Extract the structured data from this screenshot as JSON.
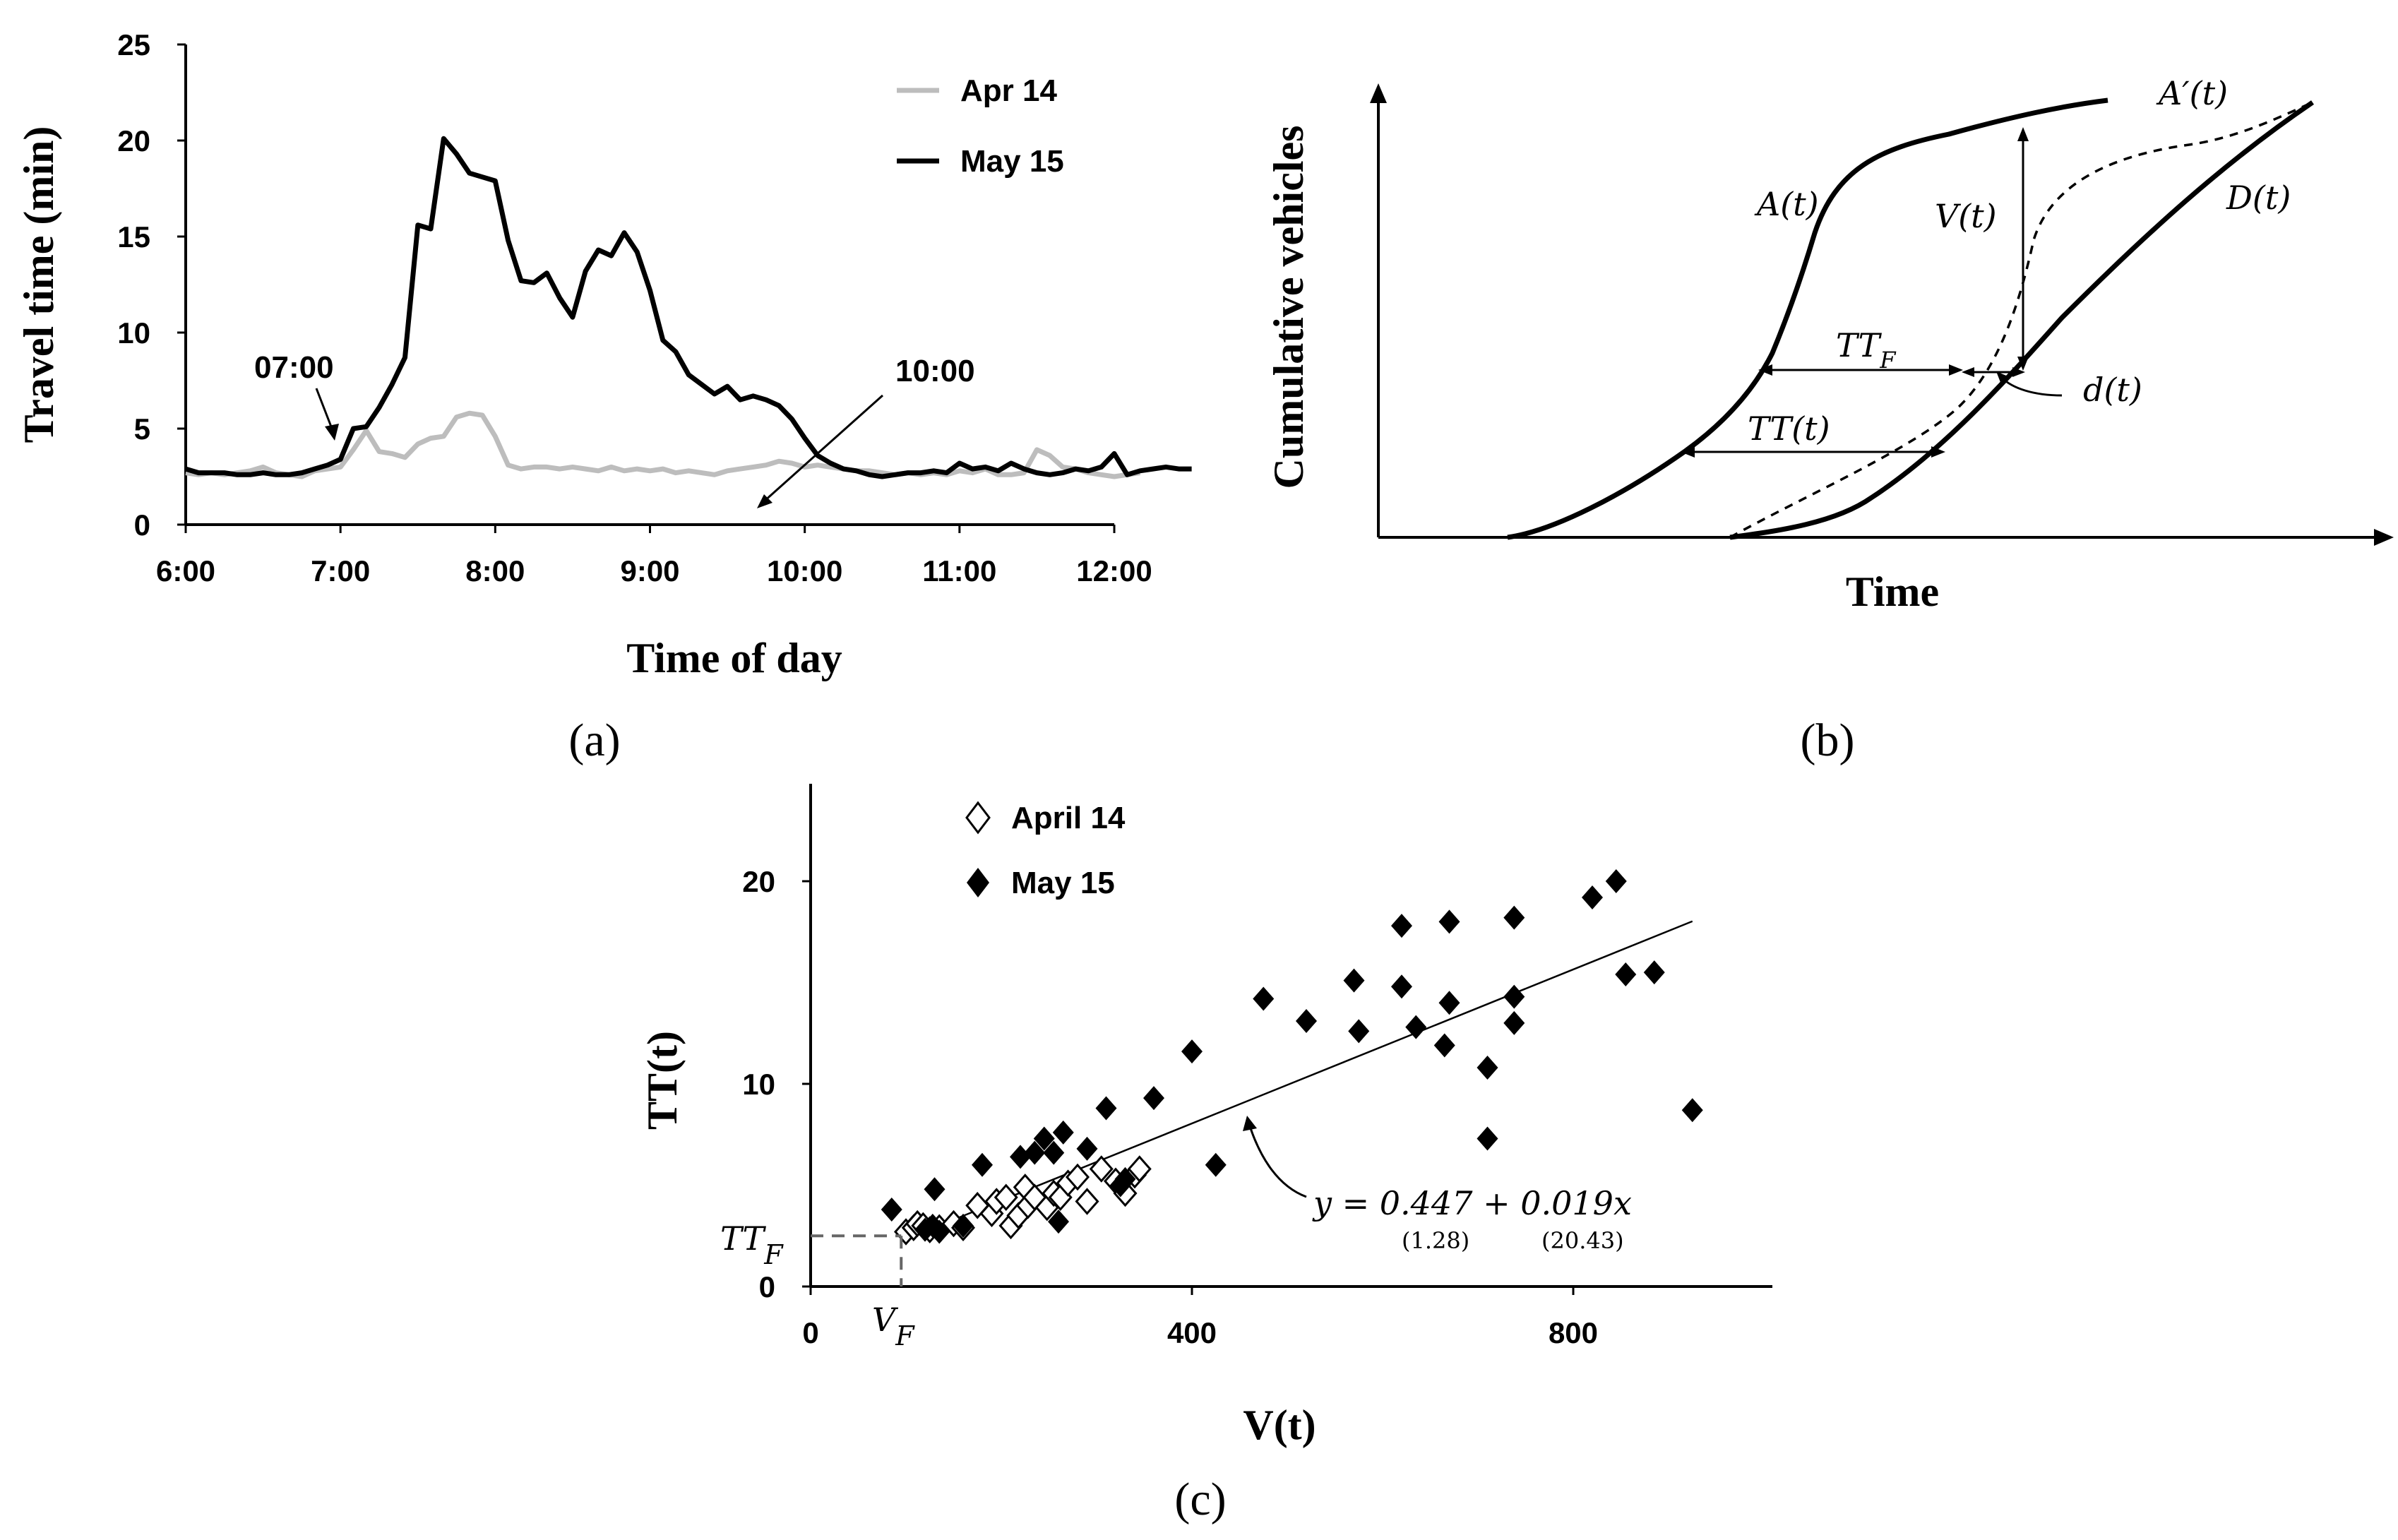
{
  "chart_data": [
    {
      "id": "a",
      "type": "line",
      "panel_label": "(a)",
      "xlabel": "Time of day",
      "ylabel": "Travel time (min)",
      "xlim": [
        6,
        12
      ],
      "ylim": [
        0,
        25
      ],
      "x_ticks": [
        "6:00",
        "7:00",
        "8:00",
        "9:00",
        "10:00",
        "11:00",
        "12:00"
      ],
      "y_ticks": [
        "0",
        "5",
        "10",
        "15",
        "20",
        "25"
      ],
      "x_start_hour": 6,
      "x_step_minutes": 5,
      "series": [
        {
          "name": "Apr 14",
          "color": "#bdbdbd",
          "values": [
            2.7,
            2.6,
            2.7,
            2.6,
            2.7,
            2.8,
            3.0,
            2.7,
            2.6,
            2.5,
            2.8,
            2.9,
            3.0,
            3.9,
            4.9,
            3.8,
            3.7,
            3.5,
            4.2,
            4.5,
            4.6,
            5.6,
            5.8,
            5.7,
            4.6,
            3.1,
            2.9,
            3.0,
            3.0,
            2.9,
            3.0,
            2.9,
            2.8,
            3.0,
            2.8,
            2.9,
            2.8,
            2.9,
            2.7,
            2.8,
            2.7,
            2.6,
            2.8,
            2.9,
            3.0,
            3.1,
            3.3,
            3.2,
            3.0,
            3.1,
            3.0,
            2.9,
            2.8,
            2.8,
            2.7,
            2.6,
            2.7,
            2.6,
            2.7,
            2.6,
            2.8,
            2.7,
            2.9,
            2.6,
            2.6,
            2.7,
            3.9,
            3.6,
            3.0,
            2.9,
            2.7,
            2.6,
            2.5,
            2.6,
            2.7
          ]
        },
        {
          "name": "May 15",
          "color": "#000000",
          "values": [
            2.9,
            2.7,
            2.7,
            2.7,
            2.6,
            2.6,
            2.7,
            2.6,
            2.6,
            2.7,
            2.9,
            3.1,
            3.4,
            5.0,
            5.1,
            6.1,
            7.3,
            8.7,
            15.6,
            15.4,
            20.1,
            19.3,
            18.3,
            18.1,
            17.9,
            14.8,
            12.7,
            12.6,
            13.1,
            11.8,
            10.8,
            13.2,
            14.3,
            14.0,
            15.2,
            14.2,
            12.2,
            9.6,
            9.0,
            7.8,
            7.3,
            6.8,
            7.2,
            6.5,
            6.7,
            6.5,
            6.2,
            5.5,
            4.5,
            3.6,
            3.2,
            2.9,
            2.8,
            2.6,
            2.5,
            2.6,
            2.7,
            2.7,
            2.8,
            2.7,
            3.2,
            2.9,
            3.0,
            2.8,
            3.2,
            2.9,
            2.7,
            2.6,
            2.7,
            2.9,
            2.8,
            3.0,
            3.7,
            2.6,
            2.8,
            2.9,
            3.0,
            2.9,
            2.9
          ]
        }
      ],
      "annotations": [
        {
          "text": "07:00",
          "target_x": 6.97,
          "target_y": 3.1
        },
        {
          "text": "10:00",
          "target_x": 10.08,
          "target_y": 3.0
        }
      ]
    },
    {
      "id": "b",
      "type": "diagram",
      "panel_label": "(b)",
      "xlabel": "Time",
      "ylabel": "Cumulative vehicles",
      "labels": {
        "A": "A(t)",
        "A_prime": "A′(t)",
        "D": "D(t)",
        "V": "V(t)",
        "TT_F_main": "TT",
        "TT_F_sub": "F",
        "TT_t": "TT(t)",
        "d": "d(t)"
      }
    },
    {
      "id": "c",
      "type": "scatter",
      "panel_label": "(c)",
      "xlabel": "V(t)",
      "ylabel": "TT(t)",
      "xlim": [
        0,
        1000
      ],
      "ylim": [
        0,
        25
      ],
      "x_ticks": [
        "0",
        "400",
        "800"
      ],
      "x_tick_values": [
        0,
        400,
        800
      ],
      "y_ticks": [
        "0",
        "10",
        "20"
      ],
      "y_tick_values": [
        0,
        10,
        20
      ],
      "series": [
        {
          "name": "April 14",
          "marker": "open-diamond",
          "points": [
            [
              100,
              2.7
            ],
            [
              108,
              2.9
            ],
            [
              112,
              3.1
            ],
            [
              118,
              3.0
            ],
            [
              125,
              2.8
            ],
            [
              135,
              2.9
            ],
            [
              150,
              3.1
            ],
            [
              160,
              2.9
            ],
            [
              175,
              4.0
            ],
            [
              190,
              3.6
            ],
            [
              195,
              4.2
            ],
            [
              205,
              4.4
            ],
            [
              210,
              3.0
            ],
            [
              218,
              3.5
            ],
            [
              225,
              4.9
            ],
            [
              228,
              4.0
            ],
            [
              235,
              4.4
            ],
            [
              248,
              3.9
            ],
            [
              255,
              4.6
            ],
            [
              262,
              4.4
            ],
            [
              270,
              5.1
            ],
            [
              280,
              5.4
            ],
            [
              290,
              4.2
            ],
            [
              305,
              5.8
            ],
            [
              320,
              5.2
            ],
            [
              330,
              4.6
            ],
            [
              340,
              5.5
            ],
            [
              345,
              5.8
            ]
          ]
        },
        {
          "name": "May 15",
          "marker": "filled-diamond",
          "points": [
            [
              85,
              3.8
            ],
            [
              120,
              2.8
            ],
            [
              128,
              3.0
            ],
            [
              135,
              2.7
            ],
            [
              160,
              3.0
            ],
            [
              130,
              4.8
            ],
            [
              180,
              6.0
            ],
            [
              220,
              6.4
            ],
            [
              235,
              6.6
            ],
            [
              245,
              7.3
            ],
            [
              255,
              6.6
            ],
            [
              260,
              3.2
            ],
            [
              265,
              7.6
            ],
            [
              290,
              6.8
            ],
            [
              310,
              8.8
            ],
            [
              325,
              5.0
            ],
            [
              330,
              5.3
            ],
            [
              360,
              9.3
            ],
            [
              400,
              11.6
            ],
            [
              425,
              6.0
            ],
            [
              475,
              14.2
            ],
            [
              520,
              13.1
            ],
            [
              570,
              15.1
            ],
            [
              575,
              12.6
            ],
            [
              620,
              17.8
            ],
            [
              620,
              14.8
            ],
            [
              635,
              12.8
            ],
            [
              665,
              11.9
            ],
            [
              670,
              18.0
            ],
            [
              670,
              14.0
            ],
            [
              710,
              7.3
            ],
            [
              710,
              10.8
            ],
            [
              738,
              18.2
            ],
            [
              738,
              14.3
            ],
            [
              738,
              13.0
            ],
            [
              820,
              19.2
            ],
            [
              845,
              20.0
            ],
            [
              855,
              15.4
            ],
            [
              885,
              15.5
            ],
            [
              925,
              8.7
            ]
          ]
        }
      ],
      "fit": {
        "intercept": 0.447,
        "slope": 0.019,
        "x_range": [
          95,
          925
        ],
        "equation": "y = 0.447 + 0.019x",
        "se_intercept": "(1.28)",
        "se_slope": "(20.43)"
      },
      "free_flow": {
        "V": 95,
        "TT": 2.5,
        "V_label_main": "V",
        "V_label_sub": "F",
        "TT_label_main": "TT",
        "TT_label_sub": "F"
      }
    }
  ],
  "figure": {
    "label_a": "(a)",
    "label_b": "(b)",
    "label_c": "(c)",
    "legend_a": [
      "Apr 14",
      "May 15"
    ],
    "legend_c": [
      "April 14",
      "May 15"
    ],
    "colors": {
      "apr": "#bdbdbd",
      "may": "#000000",
      "dash": "#666666"
    }
  }
}
